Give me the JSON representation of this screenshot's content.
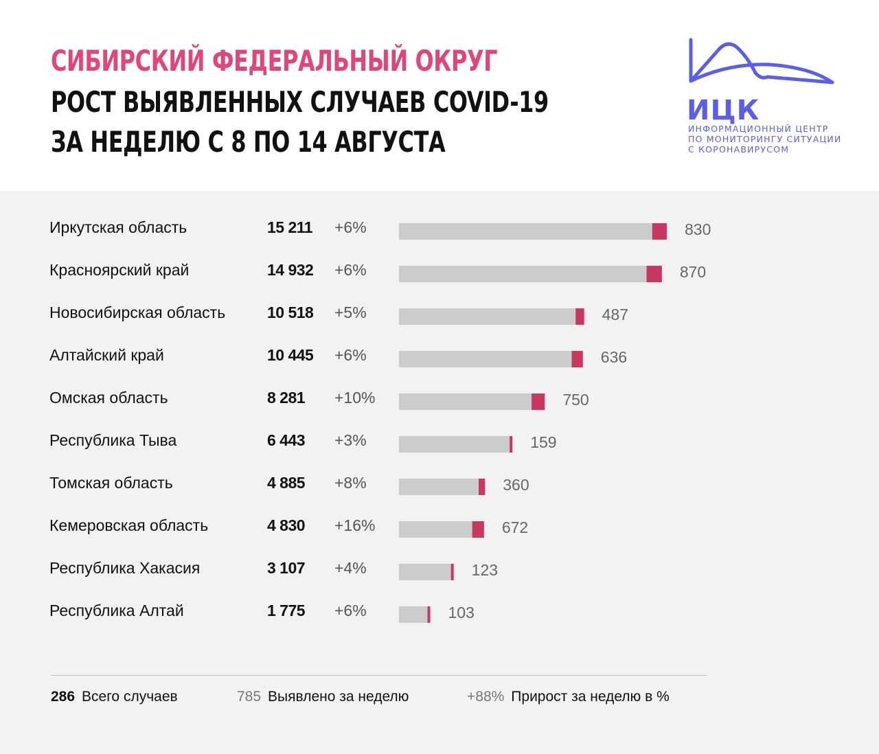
{
  "header": {
    "title_region": "СИБИРСКИЙ ФЕДЕРАЛЬНЫЙ ОКРУГ",
    "title_main": "РОСТ ВЫЯВЛЕННЫХ СЛУЧАЕВ COVID-19",
    "title_period": "ЗА НЕДЕЛЮ С 8 ПО 14 АВГУСТА",
    "accent_color": "#e0457b"
  },
  "logo": {
    "name": "ИЦК",
    "line1": "ИНФОРМАЦИОННЫЙ ЦЕНТР",
    "line2": "ПО МОНИТОРИНГУ СИТУАЦИИ",
    "line3": "С КОРОНАВИРУСОМ",
    "color": "#5a5ee8"
  },
  "chart_data": {
    "type": "bar",
    "orientation": "horizontal",
    "stacked": true,
    "categories": [
      "Иркутская область",
      "Красноярский край",
      "Новосибирская область",
      "Алтайский край",
      "Омская область",
      "Республика Тыва",
      "Томская область",
      "Кемеровская область",
      "Республика Хакасия",
      "Республика Алтай"
    ],
    "totals": [
      "15 211",
      "14 932",
      "10 518",
      "10 445",
      "8 281",
      "6 443",
      "4 885",
      "4 830",
      "3 107",
      "1 775"
    ],
    "total_values": [
      15211,
      14932,
      10518,
      10445,
      8281,
      6443,
      4885,
      4830,
      3107,
      1775
    ],
    "growth_percent": [
      "+6%",
      "+6%",
      "+5%",
      "+6%",
      "+10%",
      "+3%",
      "+8%",
      "+16%",
      "+4%",
      "+6%"
    ],
    "new_cases": [
      830,
      870,
      487,
      636,
      750,
      159,
      360,
      672,
      123,
      103
    ],
    "series": [
      {
        "name": "Всего случаев",
        "color": "#cccccc"
      },
      {
        "name": "Выявлено за неделю",
        "color": "#c8375f"
      }
    ]
  },
  "legend": {
    "total_sample": "286",
    "total_label": "Всего случаев",
    "new_sample": "785",
    "new_label": "Выявлено за неделю",
    "pct_sample": "+88%",
    "pct_label": "Прирост за неделю в %"
  }
}
